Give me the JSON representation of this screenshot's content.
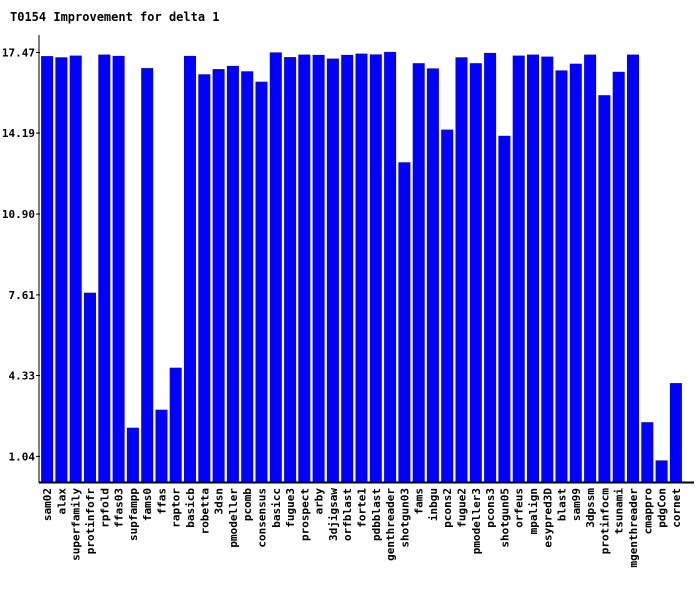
{
  "chart_data": {
    "type": "bar",
    "title": "T0154 Improvement for delta 1",
    "xlabel": "",
    "ylabel": "",
    "ylim": [
      0,
      18.3
    ],
    "yticks": [
      "1.04",
      "4.33",
      "7.61",
      "10.90",
      "14.19",
      "17.47"
    ],
    "grid": false,
    "legend": "none",
    "bar_color": "#0000ff",
    "categories": [
      "sam02",
      "alax",
      "superfamily",
      "protinfofr",
      "rpfold",
      "ffas03",
      "supfampp",
      "fams0",
      "ffas",
      "raptor",
      "basicb",
      "robetta",
      "3dsn",
      "pmodeller",
      "pcomb",
      "consensus",
      "basicc",
      "fugue3",
      "prospect",
      "arby",
      "3djigsaw",
      "orfblast",
      "forte1",
      "pdbblast",
      "genthreader",
      "shotgun03",
      "fams",
      "inbgu",
      "pcons2",
      "fugue2",
      "pmodeller3",
      "pcons3",
      "shotgun05",
      "orfeus",
      "mpalign",
      "esypred3D",
      "blast",
      "sam99",
      "3dpssm",
      "protinfocm",
      "tsunami",
      "mgenthreader",
      "cmappro",
      "pdgCon",
      "cornet"
    ],
    "values": [
      17.32,
      17.27,
      17.34,
      7.7,
      17.38,
      17.33,
      2.21,
      16.83,
      2.94,
      4.65,
      17.33,
      16.58,
      16.79,
      16.92,
      16.7,
      16.28,
      17.47,
      17.28,
      17.38,
      17.37,
      17.22,
      17.37,
      17.42,
      17.39,
      17.49,
      13.0,
      17.03,
      16.82,
      14.33,
      17.27,
      17.03,
      17.45,
      14.08,
      17.34,
      17.38,
      17.3,
      16.74,
      17.01,
      17.38,
      15.73,
      16.68,
      17.38,
      2.43,
      0.88,
      4.02
    ]
  }
}
